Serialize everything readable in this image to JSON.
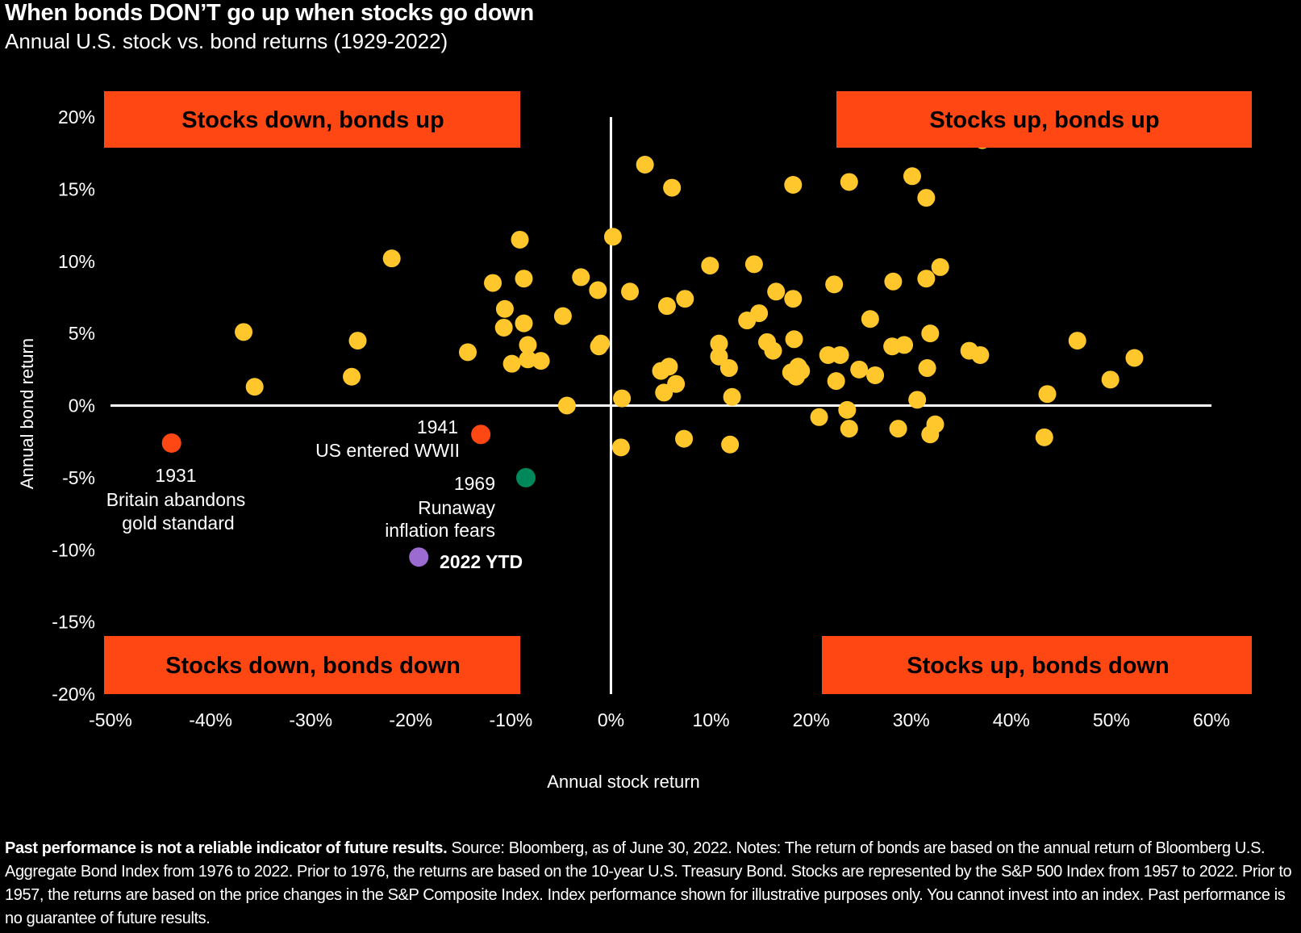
{
  "title": "When bonds DON’T go up when stocks go down",
  "subtitle": "Annual U.S. stock vs. bond returns (1929-2022)",
  "colors": {
    "background": "#000000",
    "point": "#FFC72C",
    "quadrant_label_bg": "#FF4713",
    "highlight_1931": "#FF4713",
    "highlight_1941": "#FF4713",
    "highlight_1969": "#00875A",
    "highlight_2022": "#9B6BD1",
    "axis": "#FFFFFF"
  },
  "footnote": {
    "bold": "Past performance is not a reliable indicator of future results.",
    "text": " Source: Bloomberg, as of June 30, 2022. Notes: The return of bonds are based on the annual return of Bloomberg U.S. Aggregate Bond Index from 1976 to 2022. Prior to 1976, the returns are based on the 10-year U.S. Treasury Bond. Stocks are represented by the S&P 500 Index from 1957 to 2022. Prior to 1957, the returns are based on the price changes in the S&P Composite Index. Index performance shown for illustrative purposes only. You cannot invest into an index. Past performance is no guarantee of future results."
  },
  "chart_data": {
    "type": "scatter",
    "title": "When bonds DON’T go up when stocks go down",
    "subtitle": "Annual U.S. stock vs. bond returns (1929-2022)",
    "xlabel": "Annual stock return",
    "ylabel": "Annual bond return",
    "xlim": [
      -50,
      60
    ],
    "ylim": [
      -20,
      20
    ],
    "x_ticks": [
      -50,
      -40,
      -30,
      -20,
      -10,
      0,
      10,
      20,
      30,
      40,
      50,
      60
    ],
    "x_tick_labels": [
      "-50%",
      "-40%",
      "-30%",
      "-20%",
      "-10%",
      "0%",
      "10%",
      "20%",
      "30%",
      "40%",
      "50%",
      "60%"
    ],
    "y_ticks": [
      20,
      15,
      10,
      5,
      0,
      -5,
      -10,
      -15,
      -20
    ],
    "y_tick_labels": [
      "20%",
      "15%",
      "10%",
      "5%",
      "0%",
      "-5%",
      "-10%",
      "-15%",
      "-20%"
    ],
    "grid": false,
    "quadrant_labels": {
      "top_left": "Stocks down, bonds up",
      "top_right": "Stocks up, bonds up",
      "bottom_left": "Stocks down, bonds down",
      "bottom_right": "Stocks up, bonds down"
    },
    "points": [
      {
        "x": -36.7,
        "y": 5.1
      },
      {
        "x": -35.6,
        "y": 1.3
      },
      {
        "x": -25.3,
        "y": 4.5
      },
      {
        "x": -25.9,
        "y": 2.0
      },
      {
        "x": -21.9,
        "y": 10.2
      },
      {
        "x": -14.3,
        "y": 3.7
      },
      {
        "x": -11.8,
        "y": 8.5
      },
      {
        "x": -10.6,
        "y": 6.7
      },
      {
        "x": -10.7,
        "y": 5.4
      },
      {
        "x": -9.9,
        "y": 2.9
      },
      {
        "x": -9.1,
        "y": 11.5
      },
      {
        "x": -8.7,
        "y": 8.8
      },
      {
        "x": -8.7,
        "y": 5.7
      },
      {
        "x": -8.3,
        "y": 4.2
      },
      {
        "x": -8.3,
        "y": 3.2
      },
      {
        "x": -7.0,
        "y": 3.1
      },
      {
        "x": -4.8,
        "y": 6.2
      },
      {
        "x": -4.4,
        "y": 0.0
      },
      {
        "x": -3.0,
        "y": 8.9
      },
      {
        "x": -1.3,
        "y": 8.0
      },
      {
        "x": -1.2,
        "y": 4.1
      },
      {
        "x": -1.0,
        "y": 4.3
      },
      {
        "x": 0.2,
        "y": 11.7
      },
      {
        "x": 1.1,
        "y": 0.5
      },
      {
        "x": 1.0,
        "y": -2.9
      },
      {
        "x": 1.9,
        "y": 7.9
      },
      {
        "x": 3.4,
        "y": 16.7
      },
      {
        "x": 5.0,
        "y": 2.4
      },
      {
        "x": 5.3,
        "y": 0.9
      },
      {
        "x": 5.6,
        "y": 6.9
      },
      {
        "x": 5.8,
        "y": 2.7
      },
      {
        "x": 6.1,
        "y": 15.1
      },
      {
        "x": 6.5,
        "y": 1.5
      },
      {
        "x": 7.4,
        "y": 7.4
      },
      {
        "x": 7.3,
        "y": -2.3
      },
      {
        "x": 9.9,
        "y": 9.7
      },
      {
        "x": 10.8,
        "y": 4.3
      },
      {
        "x": 10.8,
        "y": 3.4
      },
      {
        "x": 11.8,
        "y": 2.6
      },
      {
        "x": 12.1,
        "y": 0.6
      },
      {
        "x": 11.9,
        "y": -2.7
      },
      {
        "x": 13.6,
        "y": 5.9
      },
      {
        "x": 14.3,
        "y": 9.8
      },
      {
        "x": 14.8,
        "y": 6.4
      },
      {
        "x": 15.6,
        "y": 4.4
      },
      {
        "x": 16.2,
        "y": 3.8
      },
      {
        "x": 16.5,
        "y": 7.9
      },
      {
        "x": 18.2,
        "y": 7.4
      },
      {
        "x": 18.3,
        "y": 4.6
      },
      {
        "x": 18.2,
        "y": 15.3
      },
      {
        "x": 18.0,
        "y": 2.3
      },
      {
        "x": 18.5,
        "y": 2.0
      },
      {
        "x": 18.7,
        "y": 2.7
      },
      {
        "x": 19.0,
        "y": 2.4
      },
      {
        "x": 20.8,
        "y": -0.8
      },
      {
        "x": 21.7,
        "y": 3.5
      },
      {
        "x": 22.3,
        "y": 8.4
      },
      {
        "x": 22.5,
        "y": 1.7
      },
      {
        "x": 22.9,
        "y": 3.5
      },
      {
        "x": 23.6,
        "y": -0.3
      },
      {
        "x": 23.8,
        "y": 15.5
      },
      {
        "x": 23.8,
        "y": -1.6
      },
      {
        "x": 24.8,
        "y": 2.5
      },
      {
        "x": 25.9,
        "y": 6.0
      },
      {
        "x": 26.4,
        "y": 2.1
      },
      {
        "x": 28.2,
        "y": 8.6
      },
      {
        "x": 28.1,
        "y": 4.1
      },
      {
        "x": 28.7,
        "y": -1.6
      },
      {
        "x": 29.3,
        "y": 4.2
      },
      {
        "x": 30.1,
        "y": 15.9
      },
      {
        "x": 30.6,
        "y": 0.4
      },
      {
        "x": 31.5,
        "y": 14.4
      },
      {
        "x": 31.5,
        "y": 8.8
      },
      {
        "x": 31.9,
        "y": 5.0
      },
      {
        "x": 31.6,
        "y": 2.6
      },
      {
        "x": 31.9,
        "y": -2.0
      },
      {
        "x": 32.4,
        "y": -1.3
      },
      {
        "x": 32.9,
        "y": 9.6
      },
      {
        "x": 35.8,
        "y": 3.8
      },
      {
        "x": 36.9,
        "y": 3.5
      },
      {
        "x": 37.1,
        "y": 18.4
      },
      {
        "x": 43.3,
        "y": -2.2
      },
      {
        "x": 43.6,
        "y": 0.8
      },
      {
        "x": 46.6,
        "y": 4.5
      },
      {
        "x": 49.9,
        "y": 1.8
      },
      {
        "x": 52.3,
        "y": 3.3
      }
    ],
    "highlights": [
      {
        "label": "1931",
        "note": "Britain abandons gold standard",
        "x": -43.9,
        "y": -2.6,
        "color": "#FF4713"
      },
      {
        "label": "1941",
        "note": "US entered  WWII",
        "x": -13.0,
        "y": -2.0,
        "color": "#FF4713"
      },
      {
        "label": "1969",
        "note": "Runaway inflation fears",
        "x": -8.5,
        "y": -5.0,
        "color": "#00875A"
      },
      {
        "label": "2022 YTD",
        "note": "",
        "x": -19.2,
        "y": -10.5,
        "color": "#9B6BD1"
      }
    ]
  }
}
